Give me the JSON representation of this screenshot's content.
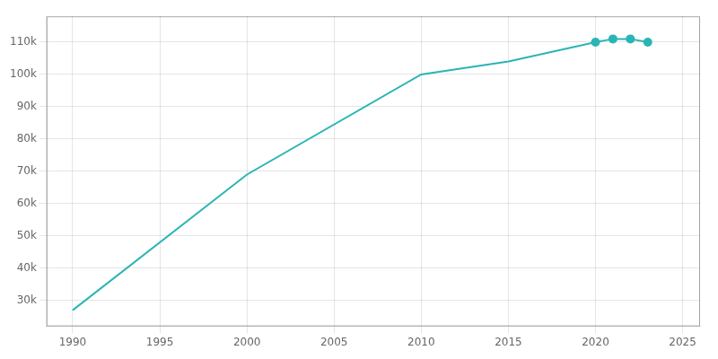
{
  "chart_data": {
    "type": "line",
    "grid": true,
    "xlim": [
      1988.5,
      2026
    ],
    "ylim": [
      22000,
      118000
    ],
    "xticks": [
      1990,
      1995,
      2000,
      2005,
      2010,
      2015,
      2020,
      2025
    ],
    "yticks": [
      {
        "value": 30000,
        "label": "30k"
      },
      {
        "value": 40000,
        "label": "40k"
      },
      {
        "value": 50000,
        "label": "50k"
      },
      {
        "value": 60000,
        "label": "60k"
      },
      {
        "value": 70000,
        "label": "70k"
      },
      {
        "value": 80000,
        "label": "80k"
      },
      {
        "value": 90000,
        "label": "90k"
      },
      {
        "value": 100000,
        "label": "100k"
      },
      {
        "value": 110000,
        "label": "110k"
      }
    ],
    "series": [
      {
        "x": [
          1990,
          2000,
          2010,
          2015,
          2020,
          2021,
          2022,
          2023
        ],
        "values": [
          27000,
          69000,
          100000,
          104000,
          110000,
          111000,
          111000,
          110000
        ],
        "color": "#2ab5b5",
        "marker": "none",
        "line_style": "solid"
      },
      {
        "x": [
          2020,
          2021,
          2022,
          2023
        ],
        "values": [
          110000,
          111000,
          111000,
          110000
        ],
        "color": "#2ab5b5",
        "marker": "circle",
        "line_style": "none"
      }
    ]
  }
}
